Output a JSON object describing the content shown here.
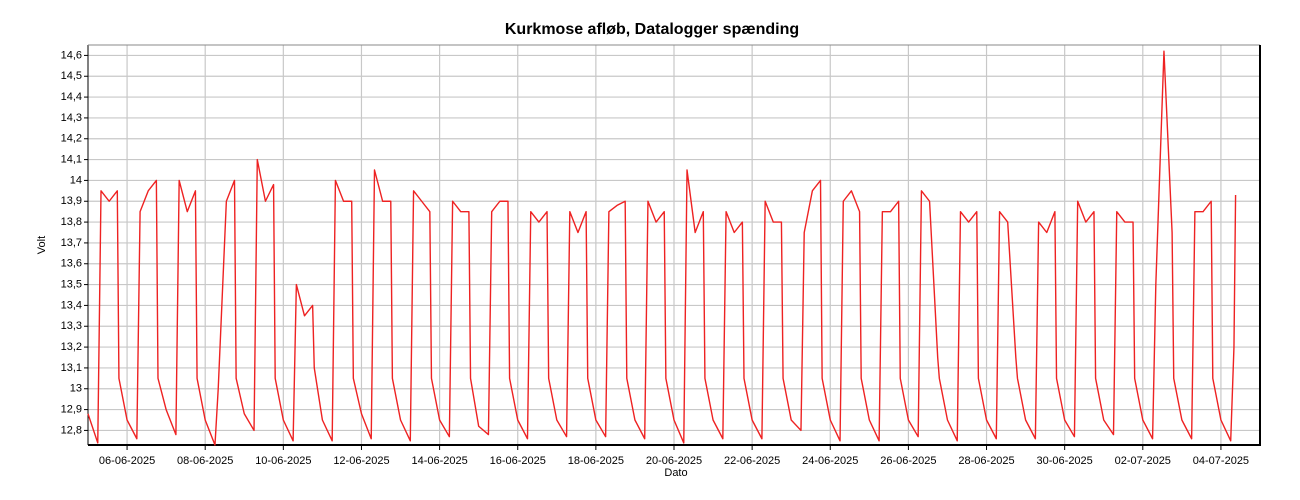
{
  "chart_data": {
    "type": "line",
    "title": "Kurkmose afløb, Datalogger spænding",
    "x_label": "Dato",
    "y_label": "Volt",
    "color": "#ee2222",
    "grid": true,
    "xlim": [
      "2025-06-05 00:00",
      "2025-07-05 00:00"
    ],
    "xticks": [
      {
        "value": "2025-06-06 00:00",
        "label": "06-06-2025"
      },
      {
        "value": "2025-06-08 00:00",
        "label": "08-06-2025"
      },
      {
        "value": "2025-06-10 00:00",
        "label": "10-06-2025"
      },
      {
        "value": "2025-06-12 00:00",
        "label": "12-06-2025"
      },
      {
        "value": "2025-06-14 00:00",
        "label": "14-06-2025"
      },
      {
        "value": "2025-06-16 00:00",
        "label": "16-06-2025"
      },
      {
        "value": "2025-06-18 00:00",
        "label": "18-06-2025"
      },
      {
        "value": "2025-06-20 00:00",
        "label": "20-06-2025"
      },
      {
        "value": "2025-06-22 00:00",
        "label": "22-06-2025"
      },
      {
        "value": "2025-06-24 00:00",
        "label": "24-06-2025"
      },
      {
        "value": "2025-06-26 00:00",
        "label": "26-06-2025"
      },
      {
        "value": "2025-06-28 00:00",
        "label": "28-06-2025"
      },
      {
        "value": "2025-06-30 00:00",
        "label": "30-06-2025"
      },
      {
        "value": "2025-07-02 00:00",
        "label": "02-07-2025"
      },
      {
        "value": "2025-07-04 00:00",
        "label": "04-07-2025"
      }
    ],
    "ylim": [
      12.73,
      14.65
    ],
    "yticks": [
      {
        "value": 12.8,
        "label": "12,8"
      },
      {
        "value": 12.9,
        "label": "12,9"
      },
      13,
      {
        "value": 13.1,
        "label": "13,1"
      },
      {
        "value": 13.2,
        "label": "13,2"
      },
      {
        "value": 13.3,
        "label": "13,3"
      },
      {
        "value": 13.4,
        "label": "13,4"
      },
      {
        "value": 13.5,
        "label": "13,5"
      },
      {
        "value": 13.6,
        "label": "13,6"
      },
      {
        "value": 13.7,
        "label": "13,7"
      },
      {
        "value": 13.8,
        "label": "13,8"
      },
      {
        "value": 13.9,
        "label": "13,9"
      },
      14,
      {
        "value": 14.1,
        "label": "14,1"
      },
      {
        "value": 14.2,
        "label": "14,2"
      },
      {
        "value": 14.3,
        "label": "14,3"
      },
      {
        "value": 14.4,
        "label": "14,4"
      },
      {
        "value": 14.5,
        "label": "14,5"
      },
      {
        "value": 14.6,
        "label": "14,6"
      }
    ],
    "x": [
      "2025-06-05 00:00",
      "2025-06-05 06:00",
      "2025-06-05 08:00",
      "2025-06-05 13:00",
      "2025-06-05 18:00",
      "2025-06-05 19:00",
      "2025-06-06 00:00",
      "2025-06-06 06:00",
      "2025-06-06 08:00",
      "2025-06-06 13:00",
      "2025-06-06 18:00",
      "2025-06-06 19:00",
      "2025-06-07 00:00",
      "2025-06-07 06:00",
      "2025-06-07 08:00",
      "2025-06-07 13:00",
      "2025-06-07 18:00",
      "2025-06-07 19:00",
      "2025-06-08 00:00",
      "2025-06-08 06:00",
      "2025-06-08 08:00",
      "2025-06-08 13:00",
      "2025-06-08 18:00",
      "2025-06-08 19:00",
      "2025-06-09 00:00",
      "2025-06-09 06:00",
      "2025-06-09 08:00",
      "2025-06-09 13:00",
      "2025-06-09 18:00",
      "2025-06-09 19:00",
      "2025-06-10 00:00",
      "2025-06-10 06:00",
      "2025-06-10 08:00",
      "2025-06-10 13:00",
      "2025-06-10 18:00",
      "2025-06-10 19:00",
      "2025-06-11 00:00",
      "2025-06-11 06:00",
      "2025-06-11 08:00",
      "2025-06-11 13:00",
      "2025-06-11 18:00",
      "2025-06-11 19:00",
      "2025-06-12 00:00",
      "2025-06-12 06:00",
      "2025-06-12 08:00",
      "2025-06-12 13:00",
      "2025-06-12 18:00",
      "2025-06-12 19:00",
      "2025-06-13 00:00",
      "2025-06-13 06:00",
      "2025-06-13 08:00",
      "2025-06-13 13:00",
      "2025-06-13 18:00",
      "2025-06-13 19:00",
      "2025-06-14 00:00",
      "2025-06-14 06:00",
      "2025-06-14 08:00",
      "2025-06-14 13:00",
      "2025-06-14 18:00",
      "2025-06-14 19:00",
      "2025-06-15 00:00",
      "2025-06-15 06:00",
      "2025-06-15 08:00",
      "2025-06-15 13:00",
      "2025-06-15 18:00",
      "2025-06-15 19:00",
      "2025-06-16 00:00",
      "2025-06-16 06:00",
      "2025-06-16 08:00",
      "2025-06-16 13:00",
      "2025-06-16 18:00",
      "2025-06-16 19:00",
      "2025-06-17 00:00",
      "2025-06-17 06:00",
      "2025-06-17 08:00",
      "2025-06-17 13:00",
      "2025-06-17 18:00",
      "2025-06-17 19:00",
      "2025-06-18 00:00",
      "2025-06-18 06:00",
      "2025-06-18 08:00",
      "2025-06-18 13:00",
      "2025-06-18 18:00",
      "2025-06-18 19:00",
      "2025-06-19 00:00",
      "2025-06-19 06:00",
      "2025-06-19 08:00",
      "2025-06-19 13:00",
      "2025-06-19 18:00",
      "2025-06-19 19:00",
      "2025-06-20 00:00",
      "2025-06-20 06:00",
      "2025-06-20 08:00",
      "2025-06-20 13:00",
      "2025-06-20 18:00",
      "2025-06-20 19:00",
      "2025-06-21 00:00",
      "2025-06-21 06:00",
      "2025-06-21 08:00",
      "2025-06-21 13:00",
      "2025-06-21 18:00",
      "2025-06-21 19:00",
      "2025-06-22 00:00",
      "2025-06-22 06:00",
      "2025-06-22 08:00",
      "2025-06-22 13:00",
      "2025-06-22 18:00",
      "2025-06-22 19:00",
      "2025-06-23 00:00",
      "2025-06-23 06:00",
      "2025-06-23 08:00",
      "2025-06-23 13:00",
      "2025-06-23 18:00",
      "2025-06-23 19:00",
      "2025-06-24 00:00",
      "2025-06-24 06:00",
      "2025-06-24 08:00",
      "2025-06-24 13:00",
      "2025-06-24 18:00",
      "2025-06-24 19:00",
      "2025-06-25 00:00",
      "2025-06-25 06:00",
      "2025-06-25 08:00",
      "2025-06-25 13:00",
      "2025-06-25 18:00",
      "2025-06-25 19:00",
      "2025-06-26 00:00",
      "2025-06-26 06:00",
      "2025-06-26 08:00",
      "2025-06-26 13:00",
      "2025-06-26 18:00",
      "2025-06-26 19:00",
      "2025-06-27 00:00",
      "2025-06-27 06:00",
      "2025-06-27 08:00",
      "2025-06-27 13:00",
      "2025-06-27 18:00",
      "2025-06-27 19:00",
      "2025-06-28 00:00",
      "2025-06-28 06:00",
      "2025-06-28 08:00",
      "2025-06-28 13:00",
      "2025-06-28 18:00",
      "2025-06-28 19:00",
      "2025-06-29 00:00",
      "2025-06-29 06:00",
      "2025-06-29 08:00",
      "2025-06-29 13:00",
      "2025-06-29 18:00",
      "2025-06-29 19:00",
      "2025-06-30 00:00",
      "2025-06-30 06:00",
      "2025-06-30 08:00",
      "2025-06-30 13:00",
      "2025-06-30 18:00",
      "2025-06-30 19:00",
      "2025-07-01 00:00",
      "2025-07-01 06:00",
      "2025-07-01 08:00",
      "2025-07-01 13:00",
      "2025-07-01 18:00",
      "2025-07-01 19:00",
      "2025-07-02 00:00",
      "2025-07-02 06:00",
      "2025-07-02 08:00",
      "2025-07-02 13:00",
      "2025-07-02 18:00",
      "2025-07-02 19:00",
      "2025-07-03 00:00",
      "2025-07-03 06:00",
      "2025-07-03 08:00",
      "2025-07-03 13:00",
      "2025-07-03 18:00",
      "2025-07-03 19:00",
      "2025-07-04 00:00",
      "2025-07-04 06:00",
      "2025-07-04 08:00",
      "2025-07-04 09:00"
    ],
    "values": [
      12.88,
      12.74,
      13.95,
      13.9,
      13.95,
      13.05,
      12.85,
      12.76,
      13.85,
      13.95,
      14.0,
      13.05,
      12.9,
      12.78,
      14.0,
      13.85,
      13.95,
      13.05,
      12.85,
      12.73,
      13.0,
      13.9,
      14.0,
      13.05,
      12.88,
      12.8,
      14.1,
      13.9,
      13.98,
      13.05,
      12.85,
      12.75,
      13.5,
      13.35,
      13.4,
      13.1,
      12.85,
      12.75,
      14.0,
      13.9,
      13.9,
      13.05,
      12.88,
      12.76,
      14.05,
      13.9,
      13.9,
      13.05,
      12.85,
      12.75,
      13.95,
      13.9,
      13.85,
      13.05,
      12.85,
      12.77,
      13.9,
      13.85,
      13.85,
      13.05,
      12.82,
      12.78,
      13.85,
      13.9,
      13.9,
      13.05,
      12.85,
      12.76,
      13.85,
      13.8,
      13.85,
      13.05,
      12.85,
      12.77,
      13.85,
      13.75,
      13.85,
      13.05,
      12.85,
      12.77,
      13.85,
      13.88,
      13.9,
      13.05,
      12.85,
      12.76,
      13.9,
      13.8,
      13.85,
      13.05,
      12.85,
      12.74,
      14.05,
      13.75,
      13.85,
      13.05,
      12.85,
      12.76,
      13.85,
      13.75,
      13.8,
      13.05,
      12.85,
      12.76,
      13.9,
      13.8,
      13.8,
      13.05,
      12.85,
      12.8,
      13.75,
      13.95,
      14.0,
      13.05,
      12.85,
      12.75,
      13.9,
      13.95,
      13.85,
      13.05,
      12.85,
      12.75,
      13.85,
      13.85,
      13.9,
      13.05,
      12.85,
      12.77,
      13.95,
      13.9,
      13.15,
      13.05,
      12.85,
      12.75,
      13.85,
      13.8,
      13.85,
      13.05,
      12.85,
      12.76,
      13.85,
      13.8,
      13.15,
      13.05,
      12.85,
      12.76,
      13.8,
      13.75,
      13.85,
      13.05,
      12.85,
      12.77,
      13.9,
      13.8,
      13.85,
      13.05,
      12.85,
      12.78,
      13.85,
      13.8,
      13.8,
      13.05,
      12.85,
      12.76,
      13.5,
      14.62,
      13.75,
      13.05,
      12.85,
      12.76,
      13.85,
      13.85,
      13.9,
      13.05,
      12.85,
      12.75,
      13.2,
      13.93
    ]
  }
}
